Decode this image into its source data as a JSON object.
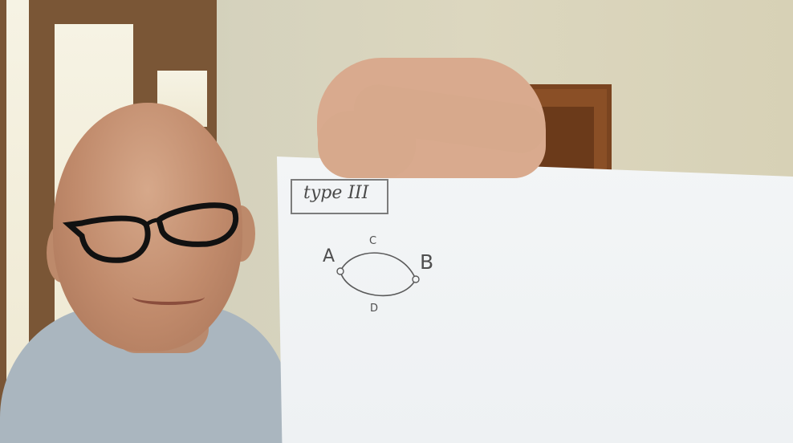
{
  "note": {
    "box_label": "type III",
    "nodes": {
      "a": "A",
      "b": "B",
      "c": "C",
      "d": "D"
    }
  }
}
